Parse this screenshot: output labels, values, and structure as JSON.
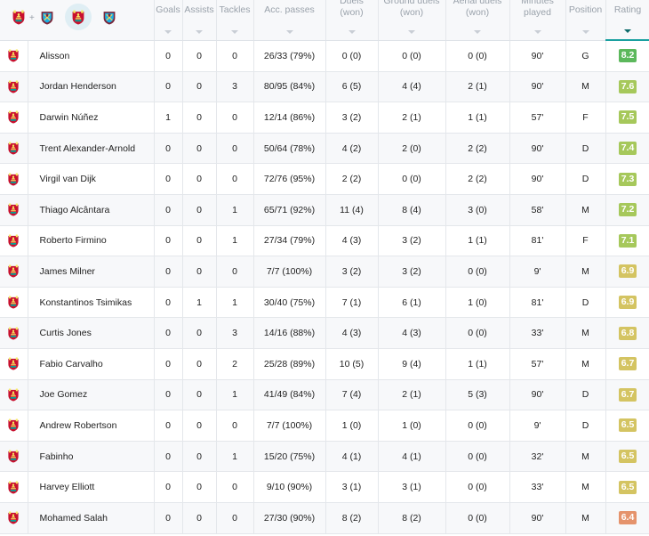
{
  "header": {
    "vs": "+",
    "columns": {
      "goals": "Goals",
      "assists": "Assists",
      "tackles": "Tackles",
      "acc_passes": "Acc. passes",
      "duels": "Duels (won)",
      "ground_duels": "Ground duels (won)",
      "aerial_duels": "Aerial duels (won)",
      "minutes_played": "Minutes played",
      "position": "Position",
      "rating": "Rating"
    },
    "home_crest": "liverpool-crest",
    "away_crest": "west-ham-crest",
    "active_sort": "rating"
  },
  "colors": {
    "rating_dark_green": "#5cb85c",
    "rating_light_green": "#a6c85b",
    "rating_yellow": "#d4c462",
    "rating_orange": "#e5936c",
    "lfc_red": "#c8102e",
    "whu_claret": "#7a263a",
    "whu_blue": "#1bb1e7"
  },
  "players": [
    {
      "team_icon": "liverpool-crest",
      "name": "Alisson",
      "goals": "0",
      "assists": "0",
      "tackles": "0",
      "acc_passes": "26/33 (79%)",
      "duels": "0 (0)",
      "ground_duels": "0 (0)",
      "aerial_duels": "0 (0)",
      "minutes": "90'",
      "position": "G",
      "rating": "8.2",
      "rating_color": "#5cb85c"
    },
    {
      "team_icon": "liverpool-crest",
      "name": "Jordan Henderson",
      "goals": "0",
      "assists": "0",
      "tackles": "3",
      "acc_passes": "80/95 (84%)",
      "duels": "6 (5)",
      "ground_duels": "4 (4)",
      "aerial_duels": "2 (1)",
      "minutes": "90'",
      "position": "M",
      "rating": "7.6",
      "rating_color": "#a6c85b"
    },
    {
      "team_icon": "liverpool-crest",
      "name": "Darwin Núñez",
      "goals": "1",
      "assists": "0",
      "tackles": "0",
      "acc_passes": "12/14 (86%)",
      "duels": "3 (2)",
      "ground_duels": "2 (1)",
      "aerial_duels": "1 (1)",
      "minutes": "57'",
      "position": "F",
      "rating": "7.5",
      "rating_color": "#a6c85b"
    },
    {
      "team_icon": "liverpool-crest",
      "name": "Trent Alexander-Arnold",
      "goals": "0",
      "assists": "0",
      "tackles": "0",
      "acc_passes": "50/64 (78%)",
      "duels": "4 (2)",
      "ground_duels": "2 (0)",
      "aerial_duels": "2 (2)",
      "minutes": "90'",
      "position": "D",
      "rating": "7.4",
      "rating_color": "#a6c85b"
    },
    {
      "team_icon": "liverpool-crest",
      "name": "Virgil van Dijk",
      "goals": "0",
      "assists": "0",
      "tackles": "0",
      "acc_passes": "72/76 (95%)",
      "duels": "2 (2)",
      "ground_duels": "0 (0)",
      "aerial_duels": "2 (2)",
      "minutes": "90'",
      "position": "D",
      "rating": "7.3",
      "rating_color": "#a6c85b"
    },
    {
      "team_icon": "liverpool-crest",
      "name": "Thiago Alcântara",
      "goals": "0",
      "assists": "0",
      "tackles": "1",
      "acc_passes": "65/71 (92%)",
      "duels": "11 (4)",
      "ground_duels": "8 (4)",
      "aerial_duels": "3 (0)",
      "minutes": "58'",
      "position": "M",
      "rating": "7.2",
      "rating_color": "#a6c85b"
    },
    {
      "team_icon": "liverpool-crest",
      "name": "Roberto Firmino",
      "goals": "0",
      "assists": "0",
      "tackles": "1",
      "acc_passes": "27/34 (79%)",
      "duels": "4 (3)",
      "ground_duels": "3 (2)",
      "aerial_duels": "1 (1)",
      "minutes": "81'",
      "position": "F",
      "rating": "7.1",
      "rating_color": "#a6c85b"
    },
    {
      "team_icon": "liverpool-crest",
      "name": "James Milner",
      "goals": "0",
      "assists": "0",
      "tackles": "0",
      "acc_passes": "7/7 (100%)",
      "duels": "3 (2)",
      "ground_duels": "3 (2)",
      "aerial_duels": "0 (0)",
      "minutes": "9'",
      "position": "M",
      "rating": "6.9",
      "rating_color": "#d4c462"
    },
    {
      "team_icon": "liverpool-crest",
      "name": "Konstantinos Tsimikas",
      "goals": "0",
      "assists": "1",
      "tackles": "1",
      "acc_passes": "30/40 (75%)",
      "duels": "7 (1)",
      "ground_duels": "6 (1)",
      "aerial_duels": "1 (0)",
      "minutes": "81'",
      "position": "D",
      "rating": "6.9",
      "rating_color": "#d4c462"
    },
    {
      "team_icon": "liverpool-crest",
      "name": "Curtis Jones",
      "goals": "0",
      "assists": "0",
      "tackles": "3",
      "acc_passes": "14/16 (88%)",
      "duels": "4 (3)",
      "ground_duels": "4 (3)",
      "aerial_duels": "0 (0)",
      "minutes": "33'",
      "position": "M",
      "rating": "6.8",
      "rating_color": "#d4c462"
    },
    {
      "team_icon": "liverpool-crest",
      "name": "Fabio Carvalho",
      "goals": "0",
      "assists": "0",
      "tackles": "2",
      "acc_passes": "25/28 (89%)",
      "duels": "10 (5)",
      "ground_duels": "9 (4)",
      "aerial_duels": "1 (1)",
      "minutes": "57'",
      "position": "M",
      "rating": "6.7",
      "rating_color": "#d4c462"
    },
    {
      "team_icon": "liverpool-crest",
      "name": "Joe Gomez",
      "goals": "0",
      "assists": "0",
      "tackles": "1",
      "acc_passes": "41/49 (84%)",
      "duels": "7 (4)",
      "ground_duels": "2 (1)",
      "aerial_duels": "5 (3)",
      "minutes": "90'",
      "position": "D",
      "rating": "6.7",
      "rating_color": "#d4c462"
    },
    {
      "team_icon": "liverpool-crest",
      "name": "Andrew Robertson",
      "goals": "0",
      "assists": "0",
      "tackles": "0",
      "acc_passes": "7/7 (100%)",
      "duels": "1 (0)",
      "ground_duels": "1 (0)",
      "aerial_duels": "0 (0)",
      "minutes": "9'",
      "position": "D",
      "rating": "6.5",
      "rating_color": "#d4c462"
    },
    {
      "team_icon": "liverpool-crest",
      "name": "Fabinho",
      "goals": "0",
      "assists": "0",
      "tackles": "1",
      "acc_passes": "15/20 (75%)",
      "duels": "4 (1)",
      "ground_duels": "4 (1)",
      "aerial_duels": "0 (0)",
      "minutes": "32'",
      "position": "M",
      "rating": "6.5",
      "rating_color": "#d4c462"
    },
    {
      "team_icon": "liverpool-crest",
      "name": "Harvey Elliott",
      "goals": "0",
      "assists": "0",
      "tackles": "0",
      "acc_passes": "9/10 (90%)",
      "duels": "3 (1)",
      "ground_duels": "3 (1)",
      "aerial_duels": "0 (0)",
      "minutes": "33'",
      "position": "M",
      "rating": "6.5",
      "rating_color": "#d4c462"
    },
    {
      "team_icon": "liverpool-crest",
      "name": "Mohamed Salah",
      "goals": "0",
      "assists": "0",
      "tackles": "0",
      "acc_passes": "27/30 (90%)",
      "duels": "8 (2)",
      "ground_duels": "8 (2)",
      "aerial_duels": "0 (0)",
      "minutes": "90'",
      "position": "M",
      "rating": "6.4",
      "rating_color": "#e5936c"
    }
  ]
}
